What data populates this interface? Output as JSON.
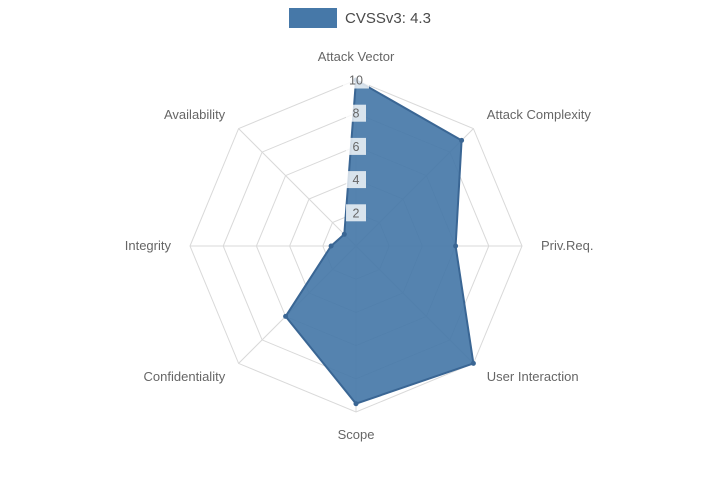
{
  "colors": {
    "fill": "#4678a8",
    "stroke": "#3a6694",
    "grid": "#d9d9d9",
    "label": "#666666",
    "tick": "#666666",
    "tick_backdrop": "rgba(255,255,255,0.78)"
  },
  "chart_data": {
    "type": "radar",
    "title": "CVSSv3: 4.3",
    "categories": [
      "Attack Vector",
      "Attack Complexity",
      "Priv.Req.",
      "User Interaction",
      "Scope",
      "Confidentiality",
      "Integrity",
      "Availability"
    ],
    "series": [
      {
        "name": "CVSSv3: 4.3",
        "values": [
          10,
          9,
          6,
          10,
          9.5,
          6,
          1.5,
          1
        ]
      }
    ],
    "rmax": 10,
    "ticks": [
      2,
      4,
      6,
      8,
      10
    ],
    "grid": true,
    "legend_position": "top"
  }
}
